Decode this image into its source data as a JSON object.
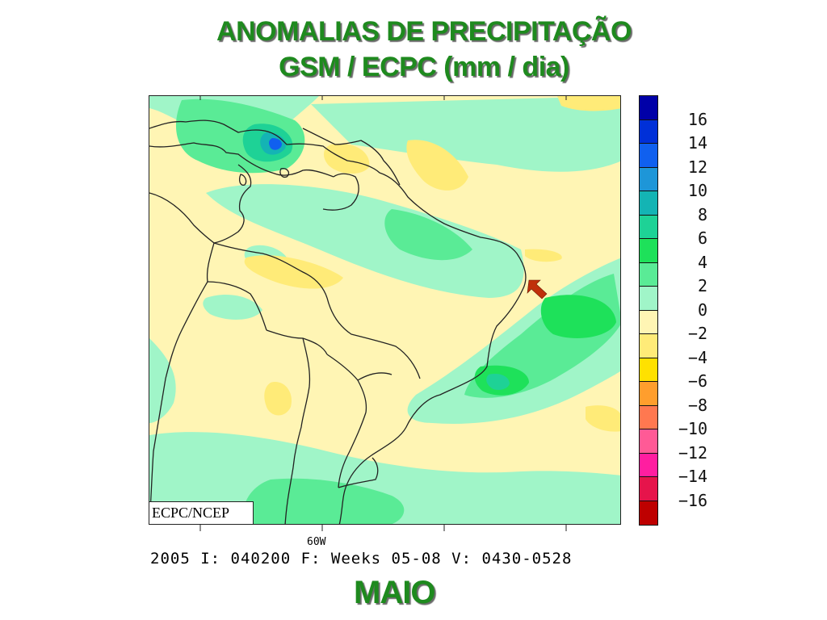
{
  "title": {
    "line1": "ANOMALIAS DE PRECIPITAÇÃO",
    "line2": "GSM / ECPC (mm / dia)"
  },
  "map": {
    "credit": "ECPC/NCEP",
    "longitude_tick_label": "60W",
    "run_info": "2005 I: 040200 F: Weeks 05-08 V: 0430-0528",
    "arrow_icon": "red-arrow-icon"
  },
  "month_label": "MAIO",
  "colorbar": {
    "labels": [
      "16",
      "14",
      "12",
      "10",
      "8",
      "6",
      "4",
      "2",
      "0",
      "−2",
      "−4",
      "−6",
      "−8",
      "−10",
      "−12",
      "−14",
      "−16"
    ],
    "colors": [
      "#0000a8",
      "#0030d8",
      "#1060ef",
      "#1e96d8",
      "#14b4b4",
      "#1ed296",
      "#1ee15a",
      "#5aeb96",
      "#a0f5c8",
      "#fff5b4",
      "#ffeb78",
      "#ffe100",
      "#ff9e2d",
      "#ff7850",
      "#ff5a96",
      "#ff1ea0",
      "#e6144b",
      "#be0000"
    ]
  },
  "colors": {
    "title_green": "#1e8a1e",
    "map_background": "#fff5b4",
    "arrow_red": "#c0300a"
  }
}
